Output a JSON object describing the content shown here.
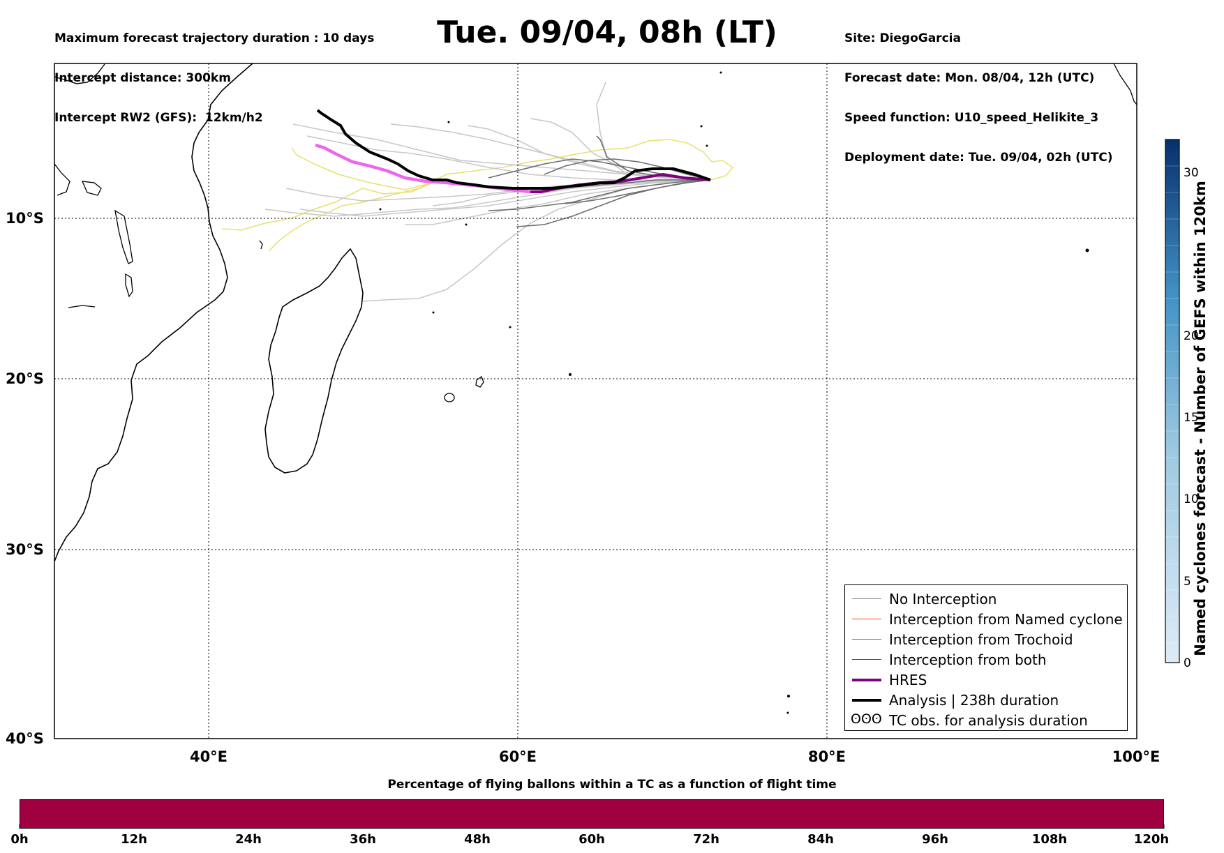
{
  "header": {
    "left_lines": [
      "Maximum forecast trajectory duration : 10 days",
      "Intercept distance: 300km",
      "Intercept RW2 (GFS):  12km/h2"
    ],
    "title": "Tue. 09/04, 08h (LT)",
    "right_lines": [
      "Site: DiegoGarcia",
      "Forecast date: Mon. 08/04, 12h (UTC)",
      "Speed function: U10_speed_Helikite_3",
      "Deployment date: Tue. 09/04, 02h (UTC)"
    ]
  },
  "map": {
    "lon_range": [
      30,
      100
    ],
    "lat_range": [
      -40,
      0.8
    ],
    "lat_ticks": [
      "10°S",
      "20°S",
      "30°S",
      "40°S"
    ],
    "lon_ticks": [
      "40°E",
      "60°E",
      "80°E",
      "100°E"
    ],
    "grid": "dotted"
  },
  "legend": {
    "items": [
      {
        "label": "No Interception",
        "color": "#808080"
      },
      {
        "label": "Interception from Named cyclone",
        "color": "#ff4500"
      },
      {
        "label": "Interception from Trochoid",
        "color": "#808000"
      },
      {
        "label": "Interception from both",
        "color": "#008000"
      },
      {
        "label": "HRES",
        "color": "#800080"
      },
      {
        "label": "Analysis | 238h duration",
        "color": "#000000"
      },
      {
        "label": "TC obs. for analysis duration",
        "glyph": "ʘʘʘ"
      }
    ]
  },
  "colorbar": {
    "title": "Named cyclones forecast - Number of GEFS within 120km",
    "ticks": [
      "0",
      "5",
      "10",
      "15",
      "20",
      "30"
    ],
    "top_color": "#08306b",
    "bottom_color": "#deebf7"
  },
  "bottom_bar": {
    "title": "Percentage of flying ballons within a TC as a function of flight time",
    "color": "#a10040",
    "ticks": [
      "0h",
      "12h",
      "24h",
      "36h",
      "48h",
      "60h",
      "72h",
      "84h",
      "96h",
      "108h",
      "120h"
    ]
  },
  "trajectories": {
    "hres_color": "#800080",
    "analysis_color": "#000000",
    "ensemble_light_color": "#c8c8c8",
    "ensemble_dark_color": "#6e6e6e",
    "trochoid_color": "#e8e070"
  }
}
